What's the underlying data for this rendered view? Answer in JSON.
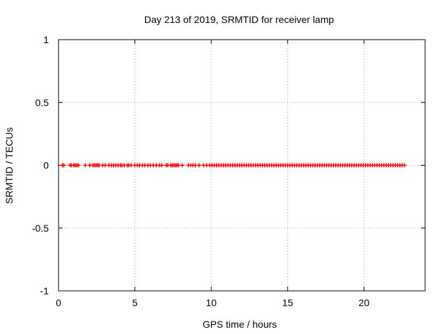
{
  "chart_data": {
    "type": "scatter",
    "title": "Day 213 of 2019, SRMTID for receiver lamp",
    "xlabel": "GPS time / hours",
    "ylabel": "SRMTID / TECUs",
    "xlim": [
      0,
      24
    ],
    "ylim": [
      -1,
      1
    ],
    "xticks": [
      0,
      5,
      10,
      15,
      20
    ],
    "yticks": [
      -1,
      -0.5,
      0,
      0.5,
      1
    ],
    "ytick_labels": [
      "-1",
      "-0.5",
      "0",
      "0.5",
      "1"
    ],
    "xtick_labels": [
      "0",
      "5",
      "10",
      "15",
      "20"
    ],
    "grid": true,
    "series": [
      {
        "name": "SRMTID",
        "color": "#ff0000",
        "marker": "plus",
        "x": [
          0.25,
          0.35,
          0.75,
          0.85,
          1.0,
          1.1,
          1.2,
          1.3,
          1.75,
          2.05,
          2.25,
          2.35,
          2.45,
          2.55,
          2.65,
          2.9,
          3.05,
          3.3,
          3.45,
          3.6,
          3.75,
          3.9,
          4.05,
          4.15,
          4.3,
          4.5,
          4.6,
          4.75,
          5.0,
          5.15,
          5.3,
          5.5,
          5.65,
          5.85,
          6.0,
          6.2,
          6.4,
          6.6,
          6.75,
          7.05,
          7.15,
          7.35,
          7.45,
          7.55,
          7.65,
          7.75,
          7.85,
          8.1,
          8.5,
          8.65,
          8.8,
          8.95,
          9.2,
          9.5,
          9.7,
          9.9,
          10.05,
          10.2,
          10.35,
          10.5,
          10.65,
          10.8,
          10.95,
          11.1,
          11.25,
          11.4,
          11.55,
          11.7,
          11.85,
          12.0,
          12.15,
          12.3,
          12.45,
          12.6,
          12.75,
          12.9,
          13.05,
          13.2,
          13.35,
          13.5,
          13.65,
          13.8,
          13.95,
          14.1,
          14.25,
          14.4,
          14.55,
          14.7,
          14.85,
          15.0,
          15.15,
          15.3,
          15.45,
          15.6,
          15.75,
          15.9,
          16.05,
          16.2,
          16.35,
          16.5,
          16.65,
          16.8,
          16.95,
          17.1,
          17.25,
          17.4,
          17.55,
          17.7,
          17.85,
          18.0,
          18.15,
          18.3,
          18.45,
          18.6,
          18.75,
          18.9,
          19.05,
          19.2,
          19.35,
          19.5,
          19.65,
          19.8,
          19.95,
          20.1,
          20.25,
          20.4,
          20.55,
          20.7,
          20.85,
          21.0,
          21.15,
          21.3,
          21.45,
          21.6,
          21.75,
          21.9,
          22.05,
          22.2,
          22.35,
          22.5,
          22.65
        ],
        "y": 0
      }
    ]
  }
}
